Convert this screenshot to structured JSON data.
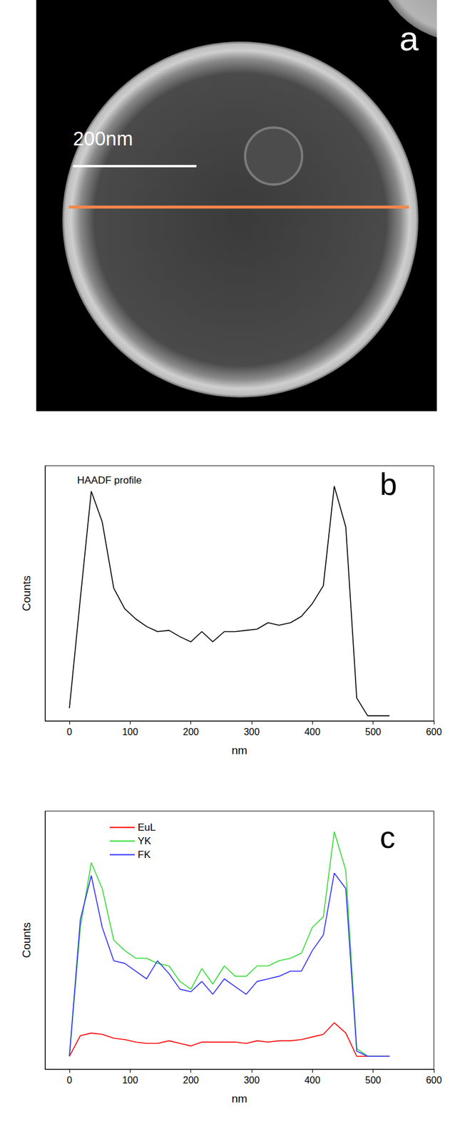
{
  "image_panel": {
    "panel": "a",
    "scale_bar": "200nm"
  },
  "chart_data": [
    {
      "type": "line",
      "panel": "b",
      "annotation": "HAADF profile",
      "x_label": "nm",
      "y_label": "Counts",
      "x": [
        0,
        18,
        36,
        54,
        73,
        91,
        109,
        127,
        145,
        164,
        182,
        200,
        218,
        236,
        255,
        273,
        291,
        309,
        327,
        345,
        364,
        382,
        400,
        418,
        436,
        455,
        473,
        491,
        509,
        527
      ],
      "series": [
        {
          "name": "HAADF profile",
          "color": "#000000",
          "values": [
            5,
            48,
            90,
            78,
            52,
            44,
            40,
            37,
            35,
            35.5,
            33,
            31,
            35,
            31,
            35,
            35,
            35.5,
            36,
            38.5,
            37.5,
            38.5,
            41,
            46,
            53,
            92,
            76,
            9,
            2,
            2,
            2
          ]
        }
      ],
      "xlim": [
        -40,
        600
      ],
      "xticks": [
        0,
        100,
        200,
        300,
        400,
        500,
        600
      ],
      "ylim": [
        0,
        100
      ],
      "grid": false,
      "tick_labels": "x"
    },
    {
      "type": "line",
      "panel": "c",
      "x_label": "nm",
      "y_label": "Counts",
      "x": [
        0,
        18,
        36,
        54,
        73,
        91,
        109,
        127,
        145,
        164,
        182,
        200,
        218,
        236,
        255,
        273,
        291,
        309,
        327,
        345,
        364,
        382,
        400,
        418,
        436,
        455,
        473,
        491,
        509,
        527
      ],
      "series": [
        {
          "name": "EuL",
          "color": "#ff0000",
          "values": [
            5,
            13,
            14,
            13.5,
            12,
            11.5,
            10.5,
            10,
            10,
            11,
            10,
            9,
            10.5,
            10.5,
            10.5,
            10.5,
            10,
            11,
            10.5,
            11,
            11,
            11.5,
            12.5,
            13.5,
            18,
            14,
            5,
            5,
            5,
            5
          ]
        },
        {
          "name": "YK",
          "color": "#33dd33",
          "values": [
            5,
            55,
            80,
            70,
            50,
            46,
            43,
            43,
            41,
            40,
            34,
            31,
            39,
            33,
            40,
            36,
            36,
            40,
            40,
            42,
            43,
            45,
            55,
            59,
            92,
            77,
            8,
            5,
            5,
            5
          ]
        },
        {
          "name": "FK",
          "color": "#3333ff",
          "values": [
            5,
            58,
            75,
            55,
            42,
            41,
            38,
            35,
            42,
            37,
            31,
            30,
            34,
            29,
            35,
            32,
            29,
            34,
            35,
            36,
            38,
            38,
            46,
            52,
            76,
            70,
            7,
            5,
            5,
            5
          ]
        }
      ],
      "xlim": [
        -40,
        600
      ],
      "xticks": [
        0,
        100,
        200,
        300,
        400,
        500,
        600
      ],
      "ylim": [
        0,
        100
      ],
      "grid": false,
      "tick_labels": "x",
      "legend": "top"
    }
  ]
}
